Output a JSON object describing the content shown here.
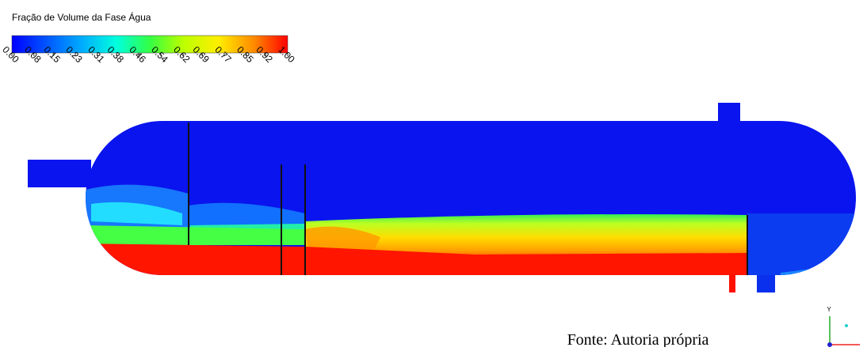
{
  "colorbar": {
    "title": "Fração de Volume da Fase Água",
    "range": [
      0,
      1
    ],
    "ticks": [
      {
        "value": 0,
        "label": "0.00"
      },
      {
        "value": 0.08,
        "label": "0.08"
      },
      {
        "value": 0.15,
        "label": "0.15"
      },
      {
        "value": 0.23,
        "label": "0.23"
      },
      {
        "value": 0.31,
        "label": "0.31"
      },
      {
        "value": 0.38,
        "label": "0.38"
      },
      {
        "value": 0.46,
        "label": "0.46"
      },
      {
        "value": 0.54,
        "label": "0.54"
      },
      {
        "value": 0.62,
        "label": "0.62"
      },
      {
        "value": 0.69,
        "label": "0.69"
      },
      {
        "value": 0.77,
        "label": "0.77"
      },
      {
        "value": 0.85,
        "label": "0.85"
      },
      {
        "value": 0.92,
        "label": "0.92"
      },
      {
        "value": 1,
        "label": "1.00"
      }
    ]
  },
  "caption": "Fonte: Autoria própria",
  "triad": {
    "y": "Y"
  }
}
